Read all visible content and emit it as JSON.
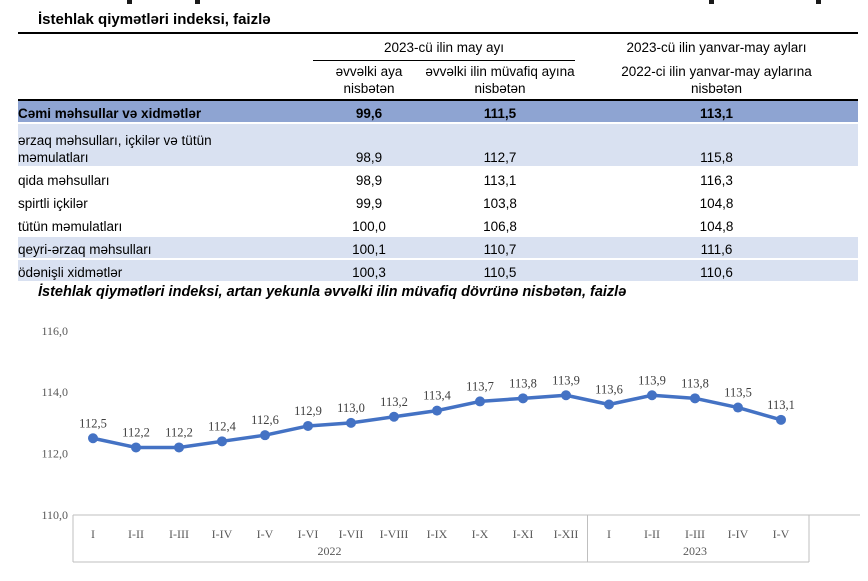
{
  "table_section": {
    "title": "İstehlak qiymətləri indeksi, faizlə",
    "header": {
      "group_col23": "2023-cü ilin may ayı",
      "col2": "əvvəlki aya nisbətən",
      "col3": "əvvəlki ilin müvafiq ayına nisbətən",
      "col4_line1": "2023-cü ilin yanvar-may ayları",
      "col4_line2": "2022-ci ilin yanvar-may aylarına nisbətən"
    },
    "rows": [
      {
        "label": "Cəmi məhsullar və xidmətlər",
        "values": [
          "99,6",
          "111,5",
          "113,1"
        ]
      },
      {
        "label": "ərzaq məhsulları, içkilər və tütün məmulatları",
        "values": [
          "98,9",
          "112,7",
          "115,8"
        ]
      },
      {
        "label": "qida məhsulları",
        "values": [
          "98,9",
          "113,1",
          "116,3"
        ]
      },
      {
        "label": "spirtli içkilər",
        "values": [
          "99,9",
          "103,8",
          "104,8"
        ]
      },
      {
        "label": "tütün məmulatları",
        "values": [
          "100,0",
          "106,8",
          "104,8"
        ]
      },
      {
        "label": "qeyri-ərzaq məhsulları",
        "values": [
          "100,1",
          "110,7",
          "111,6"
        ]
      },
      {
        "label": "ödənişli xidmətlər",
        "values": [
          "100,3",
          "110,5",
          "110,6"
        ]
      }
    ]
  },
  "chart_section": {
    "title": "İstehlak qiymətləri indeksi, artan yekunla əvvəlki ilin müvafiq dövrünə nisbətən, faizlə"
  },
  "chart_data": {
    "type": "line",
    "title": "İstehlak qiymətləri indeksi, artan yekunla əvvəlki ilin müvafiq dövrünə nisbətən, faizlə",
    "categories": [
      "I",
      "I-II",
      "I-III",
      "I-IV",
      "I-V",
      "I-VI",
      "I-VII",
      "I-VIII",
      "I-IX",
      "I-X",
      "I-XI",
      "I-XII",
      "I",
      "I-II",
      "I-III",
      "I-IV",
      "I-V"
    ],
    "year_groups": [
      {
        "label": "2022",
        "count": 12
      },
      {
        "label": "2023",
        "count": 5
      }
    ],
    "values": [
      112.5,
      112.2,
      112.2,
      112.4,
      112.6,
      112.9,
      113.0,
      113.2,
      113.4,
      113.7,
      113.8,
      113.9,
      113.6,
      113.9,
      113.8,
      113.5,
      113.1
    ],
    "point_labels": [
      "112,5",
      "112,2",
      "112,2",
      "112,4",
      "112,6",
      "112,9",
      "113,0",
      "113,2",
      "113,4",
      "113,7",
      "113,8",
      "113,9",
      "113,6",
      "113,9",
      "113,8",
      "113,5",
      "113,1"
    ],
    "y_ticks": [
      {
        "v": 116,
        "label": "116,0"
      },
      {
        "v": 114,
        "label": "114,0"
      },
      {
        "v": 112,
        "label": "112,0"
      },
      {
        "v": 110,
        "label": "110,0"
      }
    ],
    "ylim": [
      110,
      116
    ],
    "grid": false,
    "legend": "none",
    "line_color": "#4472C4",
    "axis_color": "#BFBFBF",
    "tick_text_color": "#595959",
    "point_label_color": "#404040"
  },
  "colors": {
    "total_row_bg": "#8EA4D2",
    "alt_row_bg": "#D9E1F1",
    "border_black": "#000000"
  }
}
